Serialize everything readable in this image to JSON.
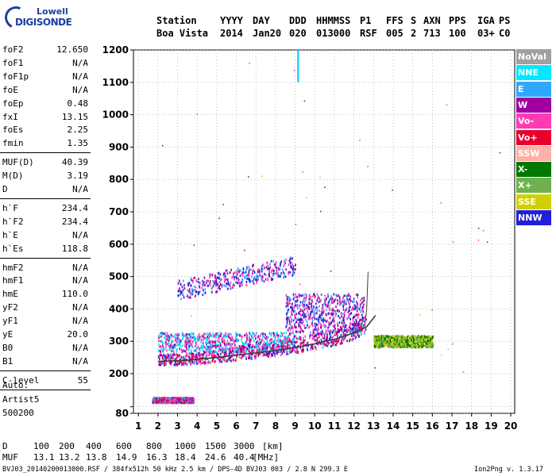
{
  "logo": {
    "line1": "Lowell",
    "line2": "DIGISONDE"
  },
  "header": {
    "labels": [
      "Station",
      "YYYY",
      "DAY",
      "DDD",
      "HHMMSS",
      "P1",
      "FFS",
      "S",
      "AXN",
      "PPS",
      "IGA",
      "PS"
    ],
    "values": [
      "Boa Vista",
      "2014",
      "Jan20",
      "020",
      "013000",
      "RSF",
      "005",
      "2",
      "713",
      "100",
      "03+",
      "C0"
    ]
  },
  "params": {
    "group1": [
      {
        "k": "foF2",
        "v": "12.650"
      },
      {
        "k": "foF1",
        "v": "N/A"
      },
      {
        "k": "foF1p",
        "v": "N/A"
      },
      {
        "k": "foE",
        "v": "N/A"
      },
      {
        "k": "foEp",
        "v": "0.48"
      },
      {
        "k": "fxI",
        "v": "13.15"
      },
      {
        "k": "foEs",
        "v": "2.25"
      },
      {
        "k": "fmin",
        "v": "1.35"
      }
    ],
    "group2": [
      {
        "k": "MUF(D)",
        "v": "40.39"
      },
      {
        "k": "M(D)",
        "v": "3.19"
      },
      {
        "k": "D",
        "v": "N/A"
      }
    ],
    "group3": [
      {
        "k": "h`F",
        "v": "234.4"
      },
      {
        "k": "h`F2",
        "v": "234.4"
      },
      {
        "k": "h`E",
        "v": "N/A"
      },
      {
        "k": "h`Es",
        "v": "118.8"
      }
    ],
    "group4": [
      {
        "k": "hmF2",
        "v": "N/A"
      },
      {
        "k": "hmF1",
        "v": "N/A"
      },
      {
        "k": "hmE",
        "v": "110.0"
      },
      {
        "k": "yF2",
        "v": "N/A"
      },
      {
        "k": "yF1",
        "v": "N/A"
      },
      {
        "k": "yE",
        "v": "20.0"
      },
      {
        "k": "B0",
        "v": "N/A"
      },
      {
        "k": "B1",
        "v": "N/A"
      }
    ],
    "group5": [
      {
        "k": "C-level",
        "v": "55"
      }
    ]
  },
  "auto": {
    "line1": "Auto:",
    "line2": "Artist5",
    "line3": "500200"
  },
  "legend": [
    {
      "label": "NoVal",
      "color": "#a0a0a0"
    },
    {
      "label": "NNE",
      "color": "#00e8ff"
    },
    {
      "label": "E",
      "color": "#30a8ff"
    },
    {
      "label": "W",
      "color": "#a000a0"
    },
    {
      "label": "Vo-",
      "color": "#ff3cb4"
    },
    {
      "label": "Vo+",
      "color": "#e8002c"
    },
    {
      "label": "SSW",
      "color": "#ffb0a8"
    },
    {
      "label": "X-",
      "color": "#007800"
    },
    {
      "label": "X+",
      "color": "#70b050"
    },
    {
      "label": "SSE",
      "color": "#d0d000"
    },
    {
      "label": "NNW",
      "color": "#2020d8"
    }
  ],
  "footer": {
    "d_label": "D",
    "d_values": [
      "100",
      "200",
      "400",
      "600",
      "800",
      "1000",
      "1500",
      "3000"
    ],
    "d_unit": "[km]",
    "muf_label": "MUF",
    "muf_values": [
      "13.1",
      "13.2",
      "13.8",
      "14.9",
      "16.3",
      "18.4",
      "24.6",
      "40.4"
    ],
    "muf_unit": "[MHz]",
    "file_line": "BVJ03_20140200013000.RSF / 384fx512h 50 kHz 2.5 km / DPS-4D BVJ03 003 / 2.8 N 299.3 E",
    "version": "Ion2Png v. 1.3.17"
  },
  "chart_data": {
    "type": "scatter",
    "title": "",
    "xlabel": "",
    "ylabel": "",
    "xlim": [
      0.75,
      20.2
    ],
    "ylim": [
      80,
      1200
    ],
    "x_ticks": [
      1,
      2,
      3,
      4,
      5,
      6,
      7,
      8,
      9,
      10,
      11,
      12,
      13,
      14,
      15,
      16,
      17,
      18,
      19,
      20
    ],
    "y_ticks": [
      80,
      100,
      200,
      300,
      400,
      500,
      600,
      700,
      800,
      900,
      1000,
      1100,
      1200
    ],
    "y_tick_labels": [
      "80",
      "",
      "200",
      "300",
      "400",
      "500",
      "600",
      "700",
      "800",
      "900",
      "1000",
      "1100",
      "1200"
    ],
    "grid": true,
    "legend_position": "right",
    "echo_clusters": [
      {
        "name": "Es layer",
        "x_range": [
          1.7,
          3.8
        ],
        "y_range": [
          115,
          130
        ],
        "colors": [
          "#ff3cb4",
          "#a000a0",
          "#e8002c",
          "#30a8ff"
        ],
        "density": 1.0
      },
      {
        "name": "F2 trace",
        "x_range": [
          2.0,
          12.6
        ],
        "y_range": [
          235,
          300
        ],
        "colors": [
          "#a000a0",
          "#ff3cb4",
          "#30a8ff",
          "#2020d8",
          "#e8002c"
        ],
        "density": 1.0
      },
      {
        "name": "F2 spread",
        "x_range": [
          2.0,
          9.0
        ],
        "y_range": [
          270,
          330
        ],
        "colors": [
          "#30a8ff",
          "#a000a0",
          "#00e8ff",
          "#ff3cb4"
        ],
        "density": 0.8
      },
      {
        "name": "spread upper",
        "x_range": [
          8.5,
          12.5
        ],
        "y_range": [
          330,
          450
        ],
        "colors": [
          "#2020d8",
          "#a000a0",
          "#30a8ff",
          "#ff3cb4"
        ],
        "density": 0.7
      },
      {
        "name": "multi-hop",
        "x_range": [
          3.0,
          9.0
        ],
        "y_range": [
          460,
          560
        ],
        "colors": [
          "#a000a0",
          "#30a8ff",
          "#2020d8",
          "#ff3cb4"
        ],
        "density": 0.45
      },
      {
        "name": "X trace",
        "x_range": [
          13.0,
          16.0
        ],
        "y_range": [
          285,
          320
        ],
        "colors": [
          "#d0d000",
          "#70b050",
          "#007800"
        ],
        "density": 0.9
      },
      {
        "name": "scatter",
        "x_range": [
          1.0,
          20.0
        ],
        "y_range": [
          180,
          1180
        ],
        "colors": [
          "#e8002c",
          "#007800",
          "#ff3cb4",
          "#30a8ff",
          "#a000a0",
          "#d0d000"
        ],
        "density": 0.05
      }
    ],
    "trace_line": {
      "name": "F2 trace fit",
      "color": "#3a3a3a",
      "x": [
        2.0,
        3.0,
        4.0,
        5.0,
        6.0,
        7.0,
        8.0,
        9.0,
        10.0,
        11.0,
        12.0,
        12.65,
        13.1
      ],
      "y": [
        238,
        240,
        244,
        250,
        257,
        264,
        272,
        281,
        292,
        306,
        326,
        345,
        380
      ]
    },
    "cusp_line": {
      "name": "foF2 cusp",
      "color": "#404040",
      "x": [
        12.55,
        12.65,
        12.72
      ],
      "y": [
        345,
        400,
        515
      ]
    },
    "marker": {
      "name": "doppler marker",
      "color": "#00c8ff",
      "x": [
        9.15,
        9.15
      ],
      "y": [
        1100,
        1200
      ]
    }
  }
}
